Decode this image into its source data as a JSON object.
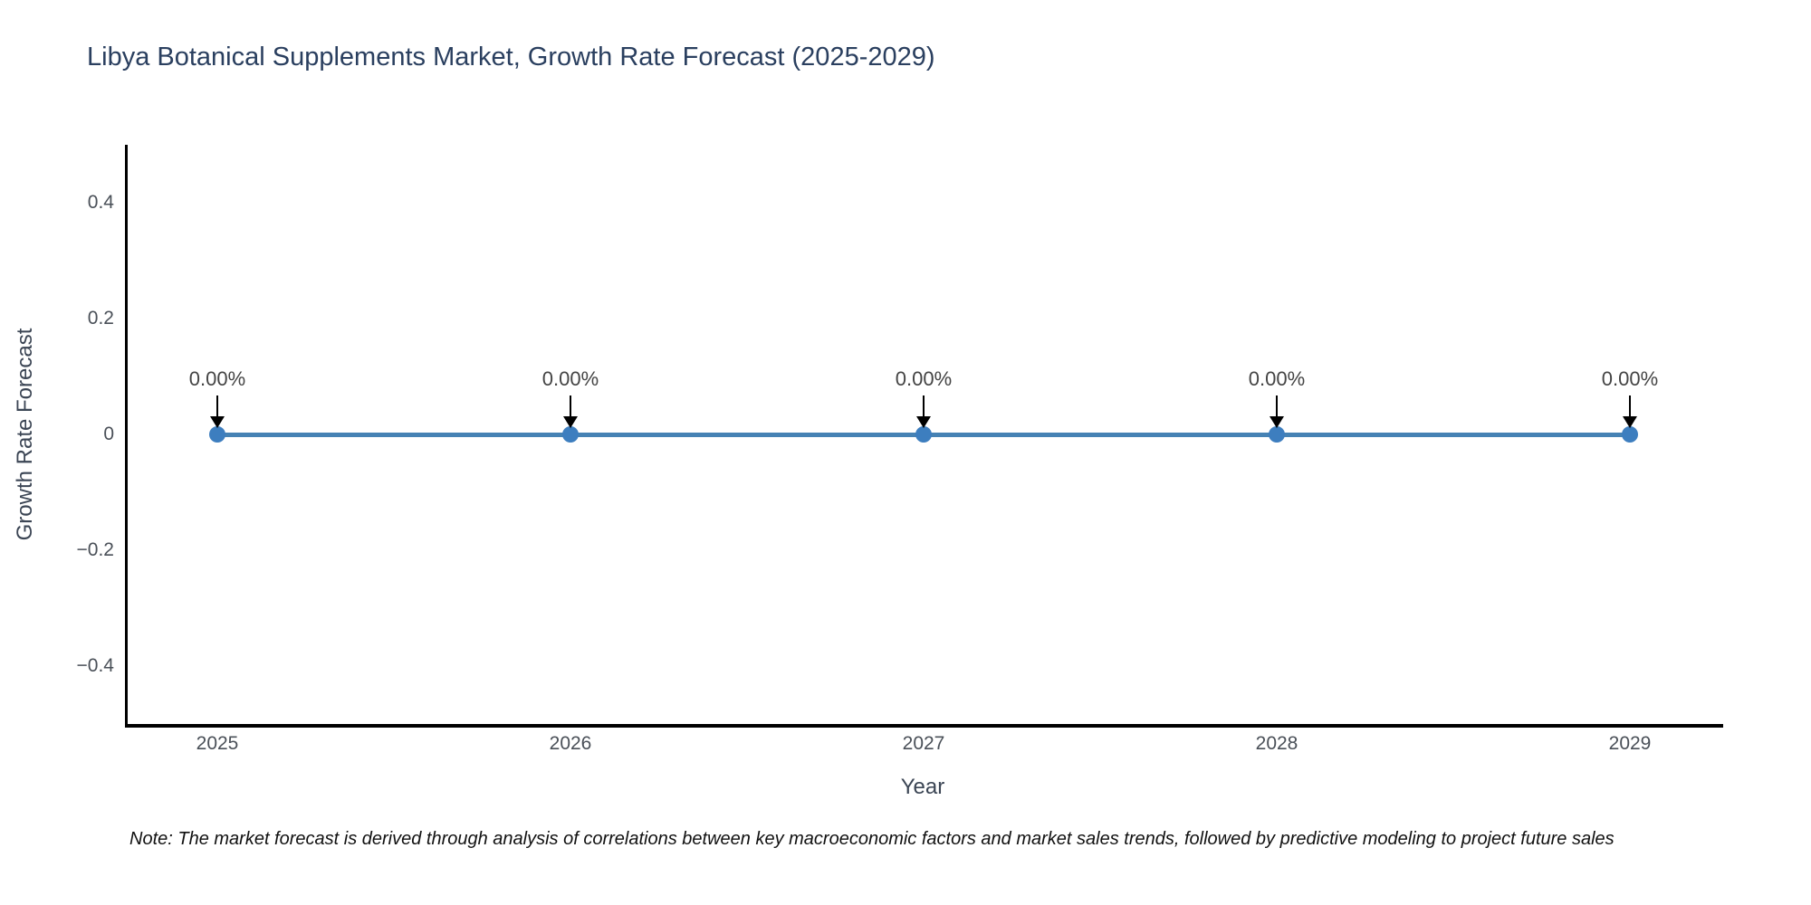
{
  "header": {
    "title": "Libya Botanical Supplements Market, Growth Rate Forecast (2025-2029)"
  },
  "footnote": {
    "text": "Note: The market forecast is derived through analysis of correlations between key macroeconomic factors and market sales trends, followed by predictive modeling to project future sales"
  },
  "chart_data": {
    "type": "line",
    "title": "Libya Botanical Supplements Market, Growth Rate Forecast (2025-2029)",
    "xlabel": "Year",
    "ylabel": "Growth Rate Forecast",
    "x": [
      2025,
      2026,
      2027,
      2028,
      2029
    ],
    "series": [
      {
        "name": "Growth Rate Forecast",
        "values": [
          0,
          0,
          0,
          0,
          0
        ]
      }
    ],
    "point_annotations": [
      "0.00%",
      "0.00%",
      "0.00%",
      "0.00%",
      "0.00%"
    ],
    "xtick_labels": [
      "2025",
      "2026",
      "2027",
      "2028",
      "2029"
    ],
    "yticks": [
      0.4,
      0.2,
      0,
      -0.2,
      -0.4
    ],
    "ytick_labels": [
      "0.4",
      "0.2",
      "0",
      "−0.2",
      "−0.4"
    ],
    "ylim": [
      -0.5,
      0.5
    ],
    "xlim_years": [
      2024.74,
      2029.26
    ],
    "grid": false,
    "legend_position": "none",
    "colors": {
      "line": "#4682b4",
      "marker": "#3d7ebf",
      "arrow": "#000000",
      "title_text": "#2a3f5f",
      "axis_line": "#000000",
      "tick_text": "#4a5058",
      "axis_title_text": "#3b4554",
      "annotation_text": "#444444",
      "note_text": "#111111"
    }
  }
}
